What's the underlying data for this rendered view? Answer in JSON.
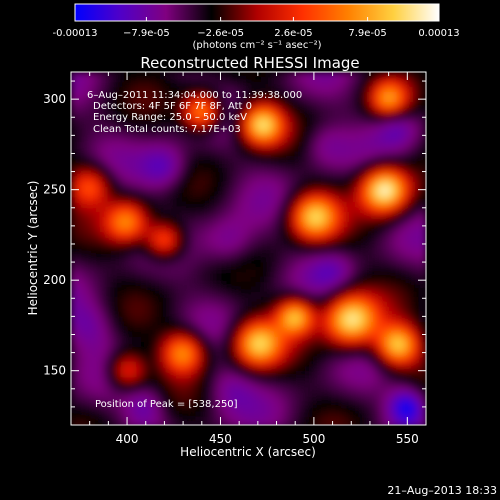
{
  "colorbar": {
    "tick_labels": [
      "-0.00013",
      "−7.9e-05",
      "−2.6e-05",
      "2.6e-05",
      "7.9e-05",
      "0.00013"
    ],
    "tick_values": [
      -0.00013,
      -7.9e-05,
      -2.6e-05,
      2.6e-05,
      7.9e-05,
      0.00013
    ],
    "range": [
      -0.00013,
      0.00013
    ],
    "units_label": "(photons cm⁻² s⁻¹ asec⁻²)",
    "colors": [
      "#0000ff",
      "#5000c8",
      "#800080",
      "#000000",
      "#b00000",
      "#ff3000",
      "#ff8000",
      "#ffd040",
      "#ffffff"
    ]
  },
  "chart_data": {
    "type": "heatmap",
    "title": "Reconstructed RHESSI Image",
    "xlabel": "Heliocentric X (arcsec)",
    "ylabel": "Heliocentric Y (arcsec)",
    "xlim": [
      370,
      560
    ],
    "ylim": [
      120,
      315
    ],
    "x_ticks": [
      400,
      450,
      500,
      550
    ],
    "y_ticks": [
      150,
      200,
      250,
      300
    ],
    "peak": {
      "x": 538,
      "y": 250
    },
    "blobs": [
      {
        "x": 538,
        "y": 250,
        "v": 1.0,
        "s": 9
      },
      {
        "x": 472,
        "y": 286,
        "v": 0.85,
        "s": 8
      },
      {
        "x": 440,
        "y": 293,
        "v": 0.65,
        "s": 7
      },
      {
        "x": 500,
        "y": 235,
        "v": 0.75,
        "s": 9
      },
      {
        "x": 520,
        "y": 178,
        "v": 0.9,
        "s": 10
      },
      {
        "x": 545,
        "y": 164,
        "v": 0.8,
        "s": 8
      },
      {
        "x": 470,
        "y": 165,
        "v": 0.75,
        "s": 9
      },
      {
        "x": 490,
        "y": 180,
        "v": 0.7,
        "s": 7
      },
      {
        "x": 430,
        "y": 160,
        "v": 0.6,
        "s": 8
      },
      {
        "x": 400,
        "y": 232,
        "v": 0.55,
        "s": 8
      },
      {
        "x": 420,
        "y": 222,
        "v": 0.5,
        "s": 7
      },
      {
        "x": 380,
        "y": 252,
        "v": 0.4,
        "s": 8
      },
      {
        "x": 540,
        "y": 300,
        "v": 0.5,
        "s": 7
      },
      {
        "x": 400,
        "y": 150,
        "v": 0.35,
        "s": 7
      },
      {
        "x": 455,
        "y": 220,
        "v": -0.6,
        "s": 10
      },
      {
        "x": 420,
        "y": 262,
        "v": -0.7,
        "s": 9
      },
      {
        "x": 505,
        "y": 275,
        "v": -0.55,
        "s": 9
      },
      {
        "x": 545,
        "y": 285,
        "v": -0.6,
        "s": 8
      },
      {
        "x": 380,
        "y": 175,
        "v": -0.55,
        "s": 10
      },
      {
        "x": 455,
        "y": 140,
        "v": -0.5,
        "s": 9
      },
      {
        "x": 550,
        "y": 130,
        "v": -0.9,
        "s": 7
      },
      {
        "x": 410,
        "y": 130,
        "v": -0.6,
        "s": 8
      },
      {
        "x": 510,
        "y": 205,
        "v": -0.5,
        "s": 8
      }
    ]
  },
  "info": {
    "line1": "6–Aug–2011 11:34:04.000 to 11:39:38.000",
    "line2": "Detectors: 4F 5F 6F 7F 8F, Att 0",
    "line3": "Energy Range: 25.0 – 50.0 keV",
    "line4": "Clean      Total counts: 7.17E+03"
  },
  "peak_text": "Position of Peak = [538,250]",
  "footer_date": "21–Aug–2013 18:33"
}
